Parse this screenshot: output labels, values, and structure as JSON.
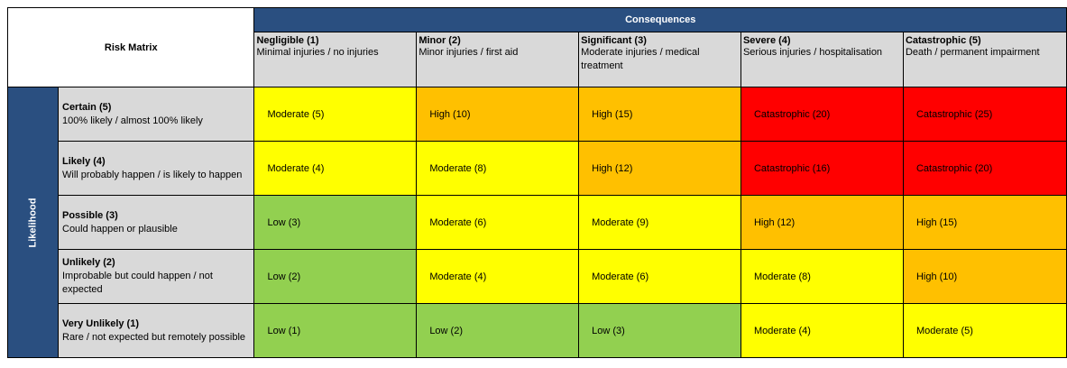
{
  "title": "Risk Matrix",
  "consequences_label": "Consequences",
  "likelihood_label": "Likelihood",
  "colors": {
    "low": "#92d050",
    "moderate": "#ffff00",
    "high": "#ffc000",
    "catastrophic": "#ff0000",
    "header": "#2a4f80"
  },
  "columns": [
    {
      "title": "Negligible (1)",
      "desc": "Minimal injuries / no injuries"
    },
    {
      "title": "Minor (2)",
      "desc": "Minor injuries / first aid"
    },
    {
      "title": "Significant (3)",
      "desc": "Moderate injuries / medical treatment"
    },
    {
      "title": "Severe (4)",
      "desc": "Serious injuries / hospitalisation"
    },
    {
      "title": "Catastrophic (5)",
      "desc": "Death / permanent impairment"
    }
  ],
  "rows": [
    {
      "title": "Certain (5)",
      "desc": "100% likely / almost 100% likely",
      "cells": [
        {
          "label": "Moderate (5)",
          "level": "moderate"
        },
        {
          "label": "High (10)",
          "level": "high"
        },
        {
          "label": "High (15)",
          "level": "high"
        },
        {
          "label": "Catastrophic (20)",
          "level": "catastrophic"
        },
        {
          "label": "Catastrophic (25)",
          "level": "catastrophic"
        }
      ]
    },
    {
      "title": "Likely (4)",
      "desc": "Will probably happen / is likely to happen",
      "cells": [
        {
          "label": "Moderate (4)",
          "level": "moderate"
        },
        {
          "label": "Moderate (8)",
          "level": "moderate"
        },
        {
          "label": "High (12)",
          "level": "high"
        },
        {
          "label": "Catastrophic (16)",
          "level": "catastrophic"
        },
        {
          "label": "Catastrophic (20)",
          "level": "catastrophic"
        }
      ]
    },
    {
      "title": "Possible (3)",
      "desc": "Could happen or plausible",
      "cells": [
        {
          "label": "Low (3)",
          "level": "low"
        },
        {
          "label": "Moderate (6)",
          "level": "moderate"
        },
        {
          "label": "Moderate (9)",
          "level": "moderate"
        },
        {
          "label": "High (12)",
          "level": "high"
        },
        {
          "label": "High (15)",
          "level": "high"
        }
      ]
    },
    {
      "title": "Unlikely (2)",
      "desc": "Improbable but could happen / not expected",
      "cells": [
        {
          "label": "Low (2)",
          "level": "low"
        },
        {
          "label": "Moderate (4)",
          "level": "moderate"
        },
        {
          "label": "Moderate (6)",
          "level": "moderate"
        },
        {
          "label": "Moderate (8)",
          "level": "moderate"
        },
        {
          "label": "High (10)",
          "level": "high"
        }
      ]
    },
    {
      "title": "Very Unlikely (1)",
      "desc": "Rare / not expected but remotely possible",
      "cells": [
        {
          "label": "Low (1)",
          "level": "low"
        },
        {
          "label": "Low (2)",
          "level": "low"
        },
        {
          "label": "Low (3)",
          "level": "low"
        },
        {
          "label": "Moderate (4)",
          "level": "moderate"
        },
        {
          "label": "Moderate (5)",
          "level": "moderate"
        }
      ]
    }
  ]
}
